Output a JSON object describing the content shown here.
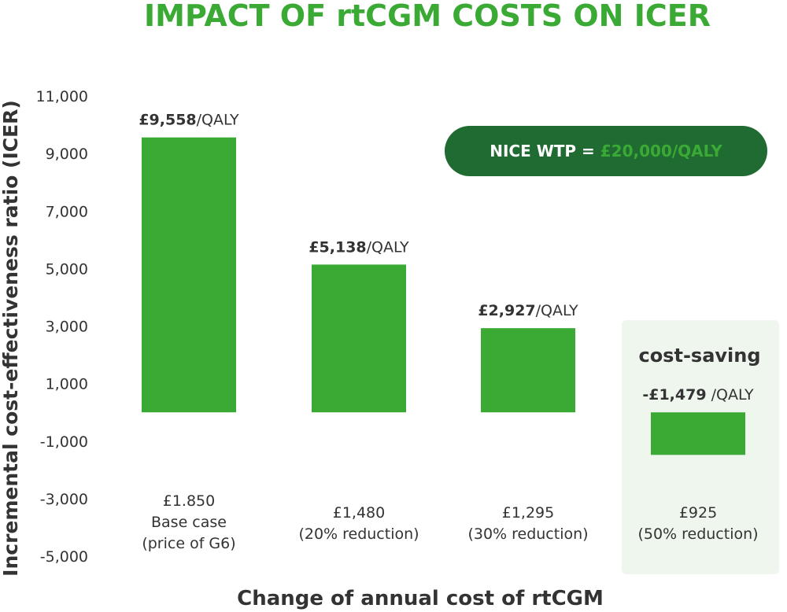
{
  "colors": {
    "title": "#3aaa35",
    "bar": "#3aaa35",
    "wtp_box": "#1f6b32",
    "wtp_text": "#ffffff",
    "wtp_highlight": "#3aaa35",
    "saving_panel": "#eef6ee"
  },
  "wtp": {
    "prefix": "NICE WTP = ",
    "value": "£20,000/QALY"
  },
  "cost_saving_label": "cost-saving",
  "chart_data": {
    "type": "bar",
    "title": "IMPACT OF rtCGM COSTS ON ICER",
    "xlabel": "Change of annual cost of rtCGM",
    "ylabel": "Incremental cost-effectiveness ratio (ICER)",
    "ylim": [
      -5000,
      11000
    ],
    "yticks": [
      "11,000",
      "9,000",
      "7,000",
      "5,000",
      "3,000",
      "1,000",
      "-1,000",
      "-3,000",
      "-5,000"
    ],
    "ytick_values": [
      11000,
      9000,
      7000,
      5000,
      3000,
      1000,
      -1000,
      -3000,
      -5000
    ],
    "grid": false,
    "values": [
      9558,
      5138,
      2927,
      -1479
    ],
    "categories": [
      [
        "£1.850",
        "Base case",
        "(price of G6)"
      ],
      [
        "£1,480",
        "(20% reduction)"
      ],
      [
        "£1,295",
        "(30% reduction)"
      ],
      [
        "£925",
        "(50% reduction)"
      ]
    ],
    "data_labels": [
      {
        "value": "£9,558",
        "unit": "/QALY"
      },
      {
        "value": "£5,138",
        "unit": "/QALY"
      },
      {
        "value": "£2,927",
        "unit": "/QALY"
      },
      {
        "value": "-£1,479",
        "unit": " /QALY"
      }
    ]
  }
}
